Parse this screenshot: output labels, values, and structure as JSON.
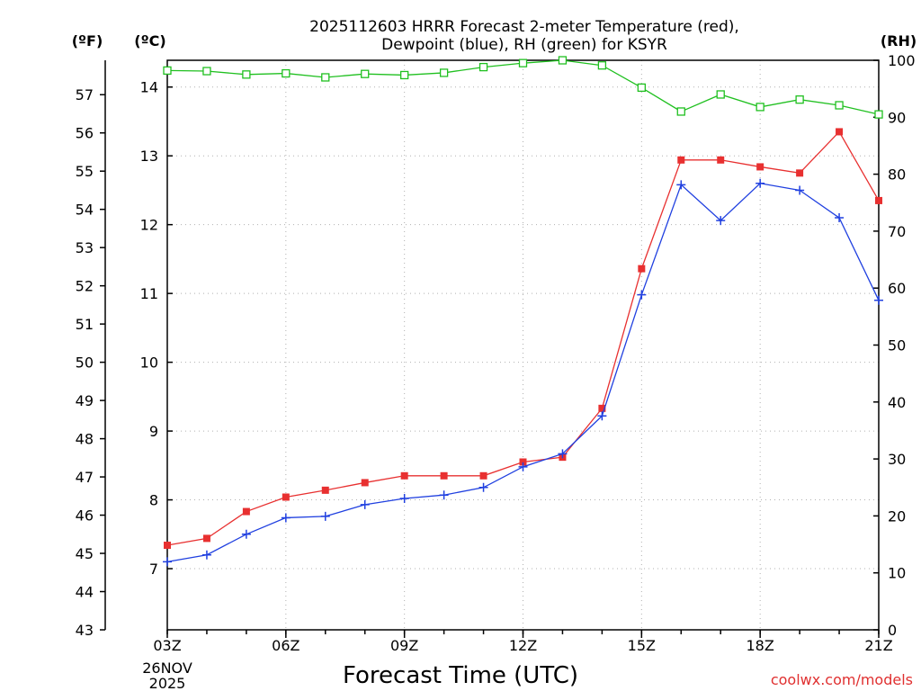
{
  "chart_data": {
    "type": "line",
    "title_line1": "2025112603 HRRR Forecast 2-meter Temperature (red),",
    "title_line2": "Dewpoint (blue), RH (green) for KSYR",
    "left_outer_axis_label": "(ºF)",
    "left_inner_axis_label": "(ºC)",
    "right_axis_label": "(RH)",
    "xlabel": "Forecast Time (UTC)",
    "date_line1": "26NOV",
    "date_line2": "2025",
    "credit": "coolwx.com/models",
    "x_ticks": [
      "03Z",
      "06Z",
      "09Z",
      "12Z",
      "15Z",
      "18Z",
      "21Z"
    ],
    "x_tick_hours": [
      3,
      6,
      9,
      12,
      15,
      18,
      21
    ],
    "x_range": [
      3,
      21
    ],
    "fahrenheit_ticks": [
      43,
      44,
      45,
      46,
      47,
      48,
      49,
      50,
      51,
      52,
      53,
      54,
      55,
      56,
      57
    ],
    "celsius_ticks": [
      7,
      8,
      9,
      10,
      11,
      12,
      13,
      14
    ],
    "rh_ticks": [
      0,
      10,
      20,
      30,
      40,
      50,
      60,
      70,
      80,
      90,
      100
    ],
    "ylim_f": [
      43,
      57.9
    ],
    "ylim_rh": [
      0,
      100
    ],
    "grid": true,
    "x": [
      3,
      4,
      5,
      6,
      7,
      8,
      9,
      10,
      11,
      12,
      13,
      14,
      15,
      16,
      17,
      18,
      19,
      20,
      21
    ],
    "series": [
      {
        "name": "Temperature",
        "units": "C",
        "color": "#e83030",
        "marker": "filled-square",
        "values": [
          7.34,
          7.44,
          7.83,
          8.04,
          8.14,
          8.25,
          8.35,
          8.35,
          8.35,
          8.55,
          8.62,
          9.33,
          11.36,
          12.94,
          12.94,
          12.84,
          12.75,
          13.35,
          12.35
        ]
      },
      {
        "name": "Dewpoint",
        "units": "C",
        "color": "#2040e0",
        "marker": "plus",
        "values": [
          7.1,
          7.2,
          7.5,
          7.74,
          7.76,
          7.93,
          8.02,
          8.07,
          8.18,
          8.48,
          8.67,
          9.22,
          10.98,
          12.58,
          12.06,
          12.6,
          12.5,
          12.1,
          10.9
        ]
      },
      {
        "name": "RH",
        "units": "%",
        "color": "#20c020",
        "marker": "open-square",
        "values": [
          98.2,
          98.1,
          97.5,
          97.7,
          97.0,
          97.6,
          97.4,
          97.8,
          98.8,
          99.5,
          100.0,
          99.1,
          95.2,
          91.0,
          94.0,
          91.8,
          93.1,
          92.1,
          90.5
        ]
      }
    ]
  }
}
